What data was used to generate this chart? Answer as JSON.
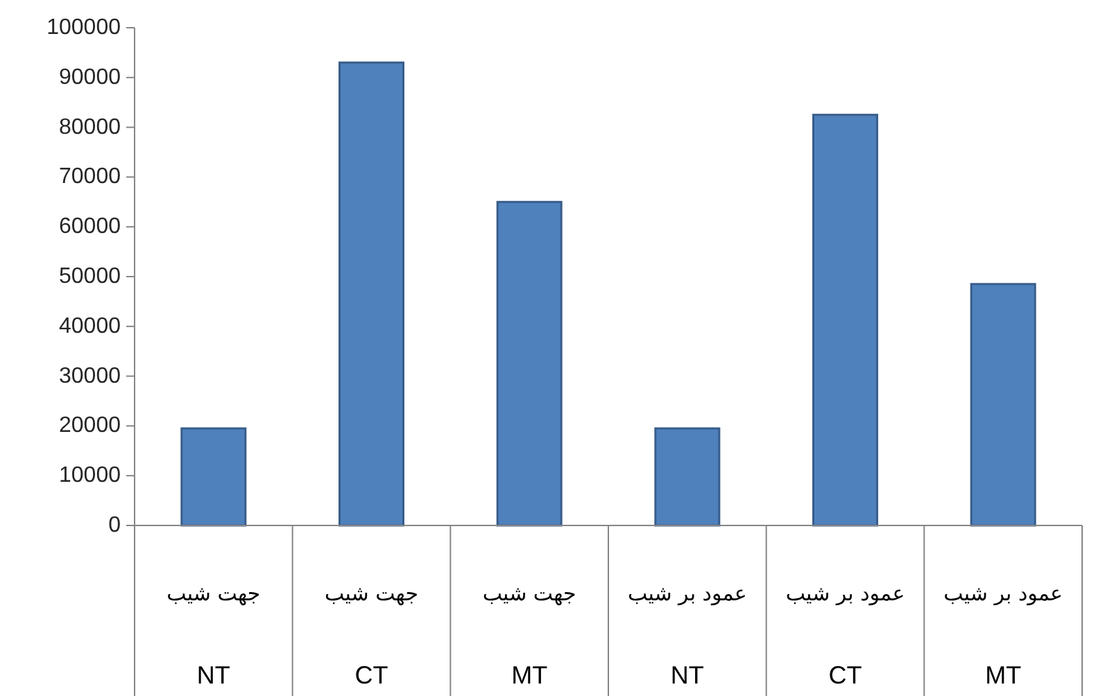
{
  "chart_data": {
    "type": "bar",
    "categories": [
      "جهت شیب\nNT",
      "جهت شیب\nCT",
      "جهت شیب\nMT",
      "عمود بر شیب\nNT",
      "عمود بر شیب\nCT",
      "عمود بر شیب\nMT"
    ],
    "values": [
      19500,
      93000,
      65000,
      19500,
      82500,
      48500
    ],
    "color": "#4f81bd",
    "ylim": [
      0,
      100000
    ],
    "yticks": [
      0,
      10000,
      20000,
      30000,
      40000,
      50000,
      60000,
      70000,
      80000,
      90000,
      100000
    ],
    "grid": false
  }
}
